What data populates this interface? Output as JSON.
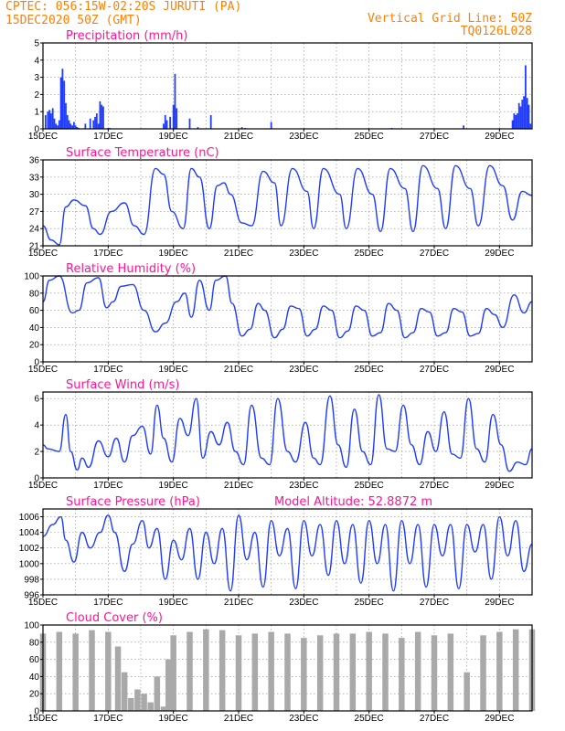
{
  "header": {
    "line1": "CPTEC:   056:15W-02:20S  JURUTI (PA)",
    "line2": "15DEC2020 50Z (GMT)",
    "right1": "Vertical Grid Line: 50Z",
    "right2": "TQ0126L028"
  },
  "chart_data": [
    {
      "type": "bar",
      "title": "Precipitation (mm/h)",
      "ylim": [
        0,
        5
      ],
      "yticks": [
        "0",
        "1",
        "2",
        "3",
        "4",
        "5"
      ],
      "xticks": [
        "15DEC",
        "17DEC",
        "19DEC",
        "21DEC",
        "23DEC",
        "25DEC",
        "27DEC",
        "29DEC"
      ],
      "x_range_days": [
        0,
        15
      ],
      "color": "#1f3cff",
      "x": [
        0.08,
        0.15,
        0.2,
        0.25,
        0.3,
        0.35,
        0.4,
        0.45,
        0.5,
        0.55,
        0.6,
        0.65,
        0.7,
        0.75,
        0.8,
        0.85,
        0.9,
        0.95,
        1.0,
        1.05,
        1.1,
        1.3,
        1.45,
        1.55,
        1.6,
        1.65,
        1.7,
        1.75,
        1.8,
        1.85,
        2.0,
        2.05,
        3.7,
        3.75,
        3.8,
        3.9,
        4.0,
        4.05,
        4.1,
        4.5,
        4.75,
        5.15,
        6.1,
        6.2,
        7.0,
        10.7,
        12.9,
        14.4,
        14.45,
        14.5,
        14.55,
        14.6,
        14.65,
        14.7,
        14.75,
        14.8,
        14.85,
        14.9,
        14.95
      ],
      "values": [
        0.8,
        1.0,
        1.1,
        0.9,
        1.2,
        0.6,
        0.3,
        0.2,
        0.5,
        3.0,
        3.5,
        2.8,
        1.5,
        0.8,
        0.5,
        0.3,
        0.2,
        0.4,
        0.2,
        0.1,
        0.05,
        0.3,
        0.6,
        0.5,
        0.7,
        0.9,
        0.3,
        1.6,
        1.4,
        1.3,
        0.05,
        0.05,
        0.3,
        0.8,
        0.5,
        0.7,
        1.4,
        3.2,
        1.2,
        0.6,
        0.1,
        0.8,
        0.1,
        0.05,
        0.4,
        0.05,
        0.2,
        0.5,
        0.9,
        0.8,
        0.9,
        1.5,
        1.3,
        1.7,
        1.9,
        3.7,
        1.8,
        1.4,
        0.3
      ]
    },
    {
      "type": "line",
      "title": "Surface Temperature (nC)",
      "ylim": [
        21,
        36
      ],
      "yticks": [
        "21",
        "24",
        "27",
        "30",
        "33",
        "36"
      ],
      "xticks": [
        "15DEC",
        "17DEC",
        "19DEC",
        "21DEC",
        "23DEC",
        "25DEC",
        "27DEC",
        "29DEC"
      ],
      "x_range_days": [
        0,
        15
      ],
      "color": "#1f3cff",
      "x": [
        0,
        0.25,
        0.5,
        0.7,
        0.95,
        1.3,
        1.55,
        1.75,
        2.1,
        2.5,
        2.8,
        3.1,
        3.45,
        3.7,
        3.95,
        4.3,
        4.55,
        4.8,
        5.1,
        5.35,
        5.55,
        5.75,
        6.1,
        6.4,
        6.75,
        7.1,
        7.3,
        7.65,
        8.1,
        8.3,
        8.6,
        9.1,
        9.3,
        9.65,
        10.1,
        10.35,
        10.65,
        11.1,
        11.35,
        11.65,
        12.1,
        12.35,
        12.65,
        13.1,
        13.35,
        13.7,
        14.1,
        14.4,
        14.7,
        15.0
      ],
      "values": [
        24.5,
        22.0,
        21.2,
        27.8,
        29.0,
        28.0,
        24.0,
        23.0,
        27.0,
        28.5,
        24.5,
        23.0,
        34.5,
        33.5,
        27.0,
        24.0,
        34.5,
        33.0,
        24.0,
        31.5,
        32.0,
        30.0,
        25.0,
        24.5,
        34.0,
        32.0,
        24.5,
        34.5,
        30.5,
        24.0,
        34.5,
        30.0,
        24.0,
        34.5,
        30.0,
        23.5,
        34.5,
        31.0,
        23.5,
        35.0,
        31.0,
        24.0,
        35.0,
        31.0,
        24.5,
        35.0,
        31.5,
        25.5,
        30.5,
        29.8
      ]
    },
    {
      "type": "line",
      "title": "Relative Humidity (%)",
      "ylim": [
        0,
        100
      ],
      "yticks": [
        "0",
        "20",
        "40",
        "60",
        "80",
        "100"
      ],
      "xticks": [
        "15DEC",
        "17DEC",
        "19DEC",
        "21DEC",
        "23DEC",
        "25DEC",
        "27DEC",
        "29DEC"
      ],
      "x_range_days": [
        0,
        15
      ],
      "color": "#1f3cff",
      "x": [
        0,
        0.2,
        0.5,
        0.9,
        1.1,
        1.35,
        1.7,
        1.95,
        2.15,
        2.4,
        2.75,
        3.1,
        3.45,
        3.75,
        4.1,
        4.35,
        4.55,
        4.8,
        5.1,
        5.3,
        5.6,
        5.8,
        6.1,
        6.35,
        6.6,
        6.8,
        7.1,
        7.35,
        7.6,
        7.85,
        8.1,
        8.35,
        8.6,
        8.85,
        9.1,
        9.35,
        9.6,
        9.85,
        10.1,
        10.35,
        10.6,
        10.85,
        11.1,
        11.35,
        11.6,
        11.85,
        12.1,
        12.35,
        12.6,
        12.85,
        13.1,
        13.35,
        13.6,
        13.85,
        14.1,
        14.45,
        14.75,
        15.0
      ],
      "values": [
        70,
        95,
        100,
        57,
        60,
        92,
        98,
        63,
        70,
        88,
        90,
        60,
        35,
        45,
        70,
        80,
        52,
        95,
        60,
        95,
        100,
        68,
        30,
        38,
        68,
        60,
        28,
        38,
        65,
        62,
        30,
        38,
        65,
        60,
        28,
        36,
        65,
        60,
        30,
        34,
        68,
        60,
        28,
        34,
        62,
        58,
        30,
        34,
        62,
        58,
        30,
        33,
        62,
        55,
        40,
        78,
        57,
        70
      ]
    },
    {
      "type": "line",
      "title": "Surface Wind (m/s)",
      "ylim": [
        0,
        6.5
      ],
      "yticks": [
        "0",
        "2",
        "4",
        "6"
      ],
      "xticks": [
        "15DEC",
        "17DEC",
        "19DEC",
        "21DEC",
        "23DEC",
        "25DEC",
        "27DEC",
        "29DEC"
      ],
      "x_range_days": [
        0,
        15
      ],
      "color": "#1f3cff",
      "x": [
        0,
        0.15,
        0.5,
        0.7,
        0.85,
        1.05,
        1.2,
        1.4,
        1.7,
        2.0,
        2.25,
        2.5,
        2.75,
        3.05,
        3.3,
        3.5,
        3.7,
        3.95,
        4.2,
        4.45,
        4.7,
        4.9,
        5.15,
        5.4,
        5.65,
        5.9,
        6.15,
        6.4,
        6.7,
        6.95,
        7.2,
        7.5,
        7.75,
        8.05,
        8.3,
        8.5,
        8.8,
        9.05,
        9.3,
        9.55,
        9.8,
        10.05,
        10.3,
        10.55,
        10.8,
        11.05,
        11.3,
        11.55,
        11.8,
        12.05,
        12.3,
        12.55,
        12.8,
        13.05,
        13.3,
        13.55,
        13.8,
        14.05,
        14.3,
        14.55,
        14.8,
        15.0
      ],
      "values": [
        2.5,
        2.2,
        2.0,
        4.8,
        2.0,
        0.6,
        1.5,
        0.8,
        2.8,
        1.6,
        3.0,
        1.2,
        3.2,
        3.9,
        1.8,
        5.5,
        3.0,
        1.2,
        4.5,
        3.2,
        6.0,
        1.5,
        3.5,
        2.5,
        4.2,
        2.0,
        1.0,
        5.5,
        1.5,
        1.0,
        6.0,
        2.0,
        1.2,
        4.2,
        1.5,
        1.0,
        6.2,
        2.5,
        0.8,
        5.2,
        2.0,
        1.0,
        6.3,
        2.2,
        2.0,
        5.5,
        2.5,
        1.0,
        3.5,
        2.0,
        5.0,
        1.8,
        1.5,
        6.0,
        2.2,
        1.2,
        4.8,
        2.5,
        0.5,
        1.2,
        1.0,
        2.2
      ]
    },
    {
      "type": "line",
      "title": "Surface Pressure (hPa)",
      "subtitle": "Model Altitude: 52.8872 m",
      "ylim": [
        996,
        1007
      ],
      "yticks": [
        "996",
        "998",
        "1000",
        "1002",
        "1004",
        "1006"
      ],
      "xticks": [
        "15DEC",
        "17DEC",
        "19DEC",
        "21DEC",
        "23DEC",
        "25DEC",
        "27DEC",
        "29DEC"
      ],
      "x_range_days": [
        0,
        15
      ],
      "color": "#1f3cff",
      "x": [
        0,
        0.3,
        0.55,
        0.7,
        0.95,
        1.2,
        1.45,
        1.75,
        2.0,
        2.2,
        2.5,
        2.75,
        3.05,
        3.25,
        3.5,
        3.75,
        4.0,
        4.25,
        4.5,
        4.75,
        5.0,
        5.25,
        5.5,
        5.75,
        6.0,
        6.25,
        6.5,
        6.75,
        7.0,
        7.25,
        7.5,
        7.75,
        8.0,
        8.25,
        8.5,
        8.75,
        9.0,
        9.25,
        9.5,
        9.75,
        10.0,
        10.25,
        10.5,
        10.75,
        11.0,
        11.25,
        11.5,
        11.75,
        12.0,
        12.25,
        12.5,
        12.75,
        13.0,
        13.25,
        13.5,
        13.75,
        14.0,
        14.25,
        14.5,
        14.75,
        15.0
      ],
      "values": [
        1003.5,
        1005.0,
        1006.0,
        1003.0,
        1000.2,
        1004.0,
        1002.0,
        1004.0,
        1006.2,
        1004.0,
        999.0,
        1002.5,
        1005.5,
        1002.0,
        1004.5,
        998.0,
        1003.0,
        1000.5,
        1004.5,
        998.0,
        1004.0,
        1000.0,
        1004.5,
        996.5,
        1006.2,
        1000.5,
        1004.0,
        997.0,
        1005.5,
        1001.0,
        1004.5,
        996.8,
        1005.5,
        1001.0,
        1005.0,
        998.5,
        1005.5,
        1000.0,
        1005.0,
        997.5,
        1005.5,
        1000.0,
        1005.0,
        996.5,
        1005.5,
        1000.0,
        1005.0,
        997.0,
        1005.0,
        1001.0,
        1005.0,
        996.8,
        1005.0,
        1001.5,
        1005.0,
        998.0,
        1006.0,
        1001.0,
        1005.5,
        999.0,
        1002.5
      ]
    },
    {
      "type": "bar",
      "title": "Cloud Cover (%)",
      "ylim": [
        0,
        100
      ],
      "yticks": [
        "0",
        "20",
        "40",
        "60",
        "80",
        "100"
      ],
      "xticks": [
        "15DEC",
        "17DEC",
        "19DEC",
        "21DEC",
        "23DEC",
        "25DEC",
        "27DEC",
        "29DEC"
      ],
      "x_range_days": [
        0,
        15
      ],
      "color": "#a9a9a9",
      "x": [
        0,
        0.5,
        1.0,
        1.5,
        2.0,
        2.3,
        2.5,
        2.7,
        2.9,
        3.1,
        3.3,
        3.5,
        3.7,
        3.85,
        4.0,
        4.5,
        5.0,
        5.5,
        6.0,
        6.5,
        7.0,
        7.5,
        8.0,
        8.5,
        9.0,
        9.5,
        10.0,
        10.5,
        11.0,
        11.5,
        12.0,
        12.5,
        13.0,
        13.5,
        14.0,
        14.5,
        15.0
      ],
      "values": [
        90,
        92,
        90,
        94,
        92,
        75,
        45,
        15,
        25,
        20,
        10,
        40,
        5,
        60,
        88,
        92,
        95,
        94,
        88,
        90,
        92,
        90,
        85,
        88,
        90,
        90,
        92,
        90,
        85,
        92,
        88,
        90,
        45,
        88,
        92,
        95,
        95
      ]
    }
  ]
}
